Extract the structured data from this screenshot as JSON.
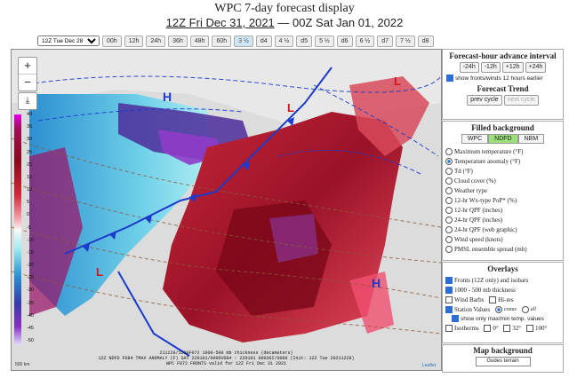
{
  "header": {
    "title": "WPC 7-day forecast display",
    "valid_from": "12Z Fri Dec 31, 2021",
    "separator": "—",
    "valid_to": "00Z Sat Jan 01, 2022"
  },
  "toolbar": {
    "cycle_select": "12Z Tue Dec 28",
    "buttons": [
      "00h",
      "12h",
      "24h",
      "36h",
      "48h",
      "60h",
      "3 ½",
      "d4",
      "4 ½",
      "d5",
      "5 ½",
      "d6",
      "6 ½",
      "d7",
      "7 ½",
      "d8"
    ],
    "active_index": 6
  },
  "map": {
    "zoom_in": "+",
    "zoom_out": "−",
    "legend_labels": [
      "40",
      "35",
      "30",
      "25",
      "20",
      "15",
      "10",
      "5",
      "0",
      "-5",
      "-10",
      "-15",
      "-20",
      "-25",
      "-30",
      "-35",
      "-40",
      "-45",
      "-50"
    ],
    "high_label": "H",
    "low_label": "L",
    "info_line1": "211228/1200F072  1000-500 mb thickness (decameters)",
    "info_line2": "12Z NDFD F084 TMAX ANOMALY (F)  SAT 220101/0000V084 : 220101 00036I/0000 (Init: 12Z Tue 20211228)",
    "info_line3": "WPC F072 FRONTS valid for 12Z Fri Dec 31 2021",
    "attribution": "Leaflet",
    "scale": "500 km"
  },
  "sidebar": {
    "advance": {
      "heading": "Forecast-hour advance interval",
      "buttons": [
        "-24h",
        "-12h",
        "+12h",
        "+24h"
      ],
      "show_fronts_label": "show fronts/winds 12 hours earlier"
    },
    "trend": {
      "heading": "Forecast Trend",
      "prev": "prev cycle",
      "next": "next cycle"
    },
    "background": {
      "heading": "Filled background",
      "sources": [
        "WPC",
        "NDFD",
        "NBM"
      ],
      "active_source": 1,
      "options": [
        "Maximum temperature (°F)",
        "Temperature anomaly (°F)",
        "Td (°F)",
        "Cloud cover (%)",
        "Weather type",
        "12-hr Wx-type PoP* (%)",
        "12-hr QPF (inches)",
        "24-hr QPF (inches)",
        "24-hr QPF (web graphic)",
        "Wind speed (knots)",
        "PMSL ensemble spread (mb)"
      ],
      "selected": 1
    },
    "overlays": {
      "heading": "Overlays",
      "fronts": "Fronts (12Z only) and isobars",
      "thickness": "1000 - 500 mb thickness",
      "wind_barbs": "Wind Barbs",
      "hires": "Hi-res",
      "station_values": "Station Values",
      "conus": "conus",
      "all": "all",
      "maxmin": "show only max/min temp. values",
      "isotherms": "Isotherms",
      "iso_0": "0°",
      "iso_32": "32°",
      "iso_100": "100°"
    },
    "map_bg": {
      "heading": "Map background",
      "selected": "Gudes terrain"
    }
  },
  "colors": {
    "warm_dark": "#8b0a1a",
    "warm": "#c8283a",
    "warm_light": "#f07080",
    "cold": "#4aa7d8",
    "cold_light": "#9fe3ef",
    "cold_dark": "#5a2aa0",
    "front_blue": "#1b3bcc",
    "isobar_brown": "#8a5a3a"
  }
}
